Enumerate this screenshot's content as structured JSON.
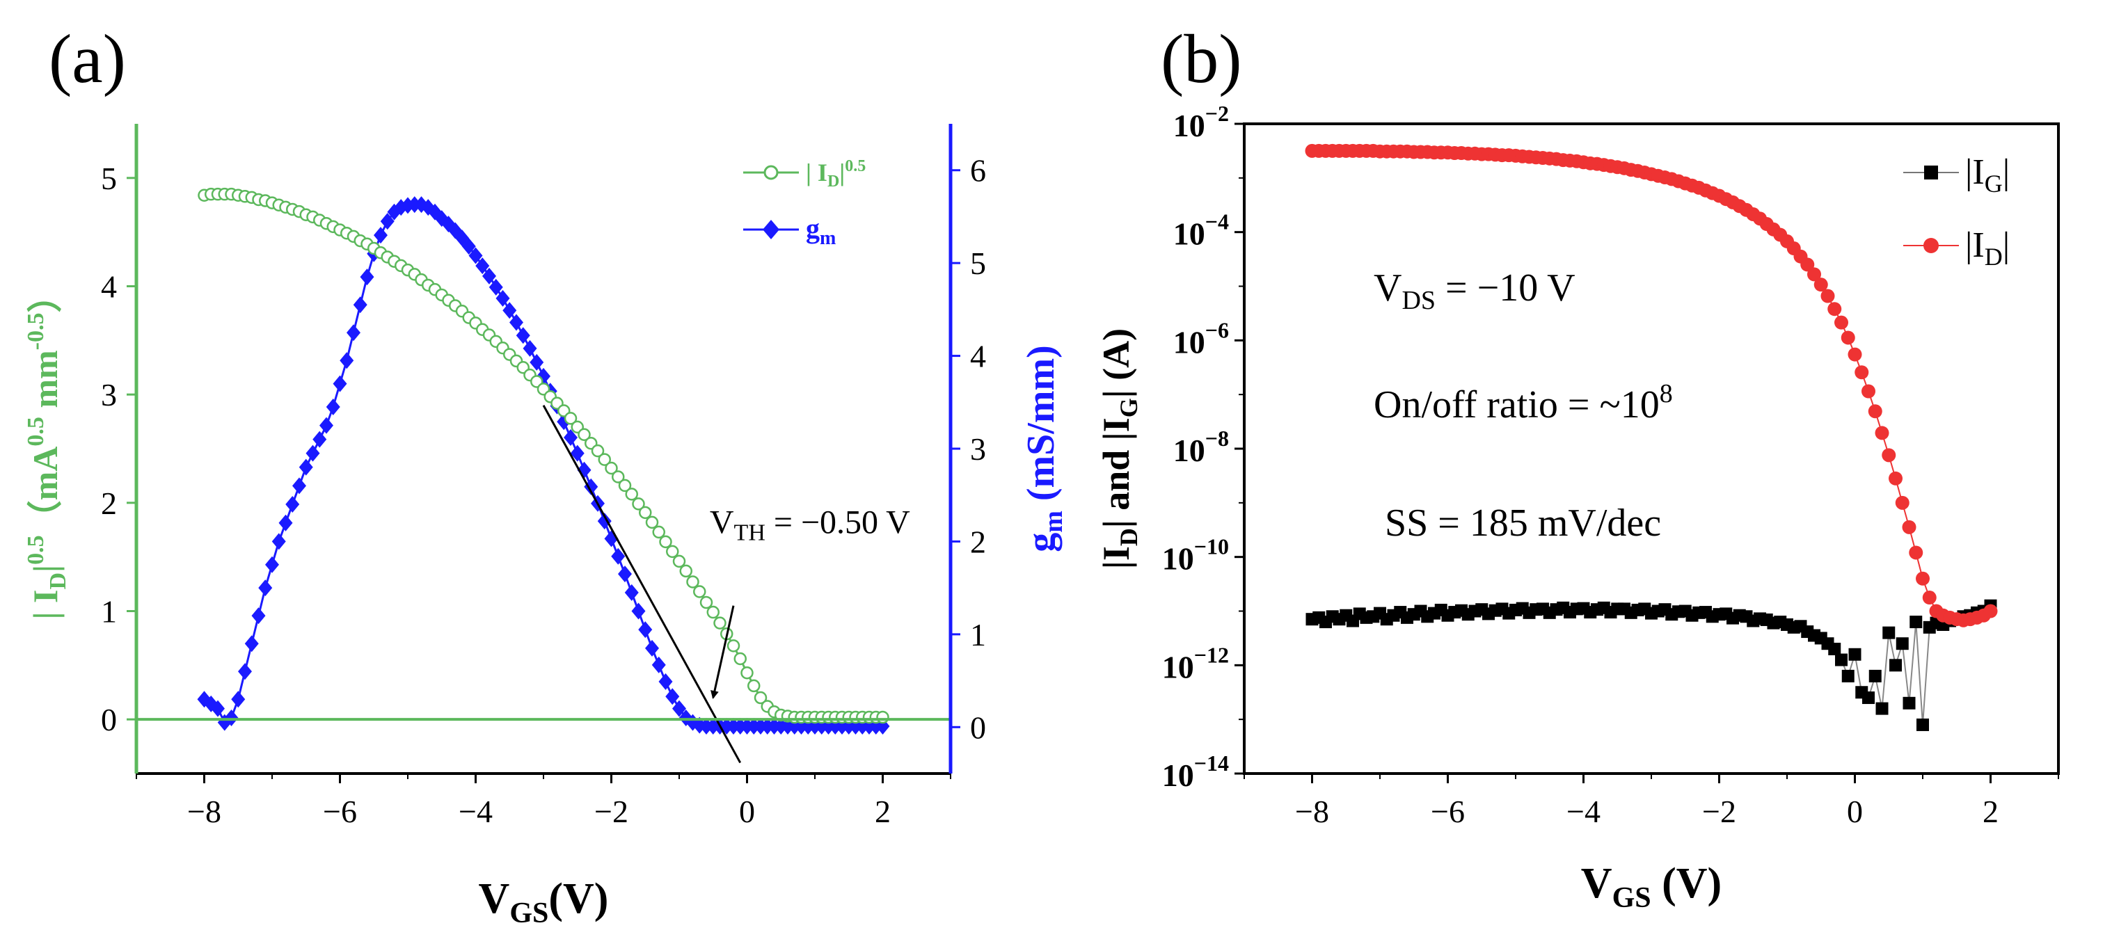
{
  "chart_data": [
    {
      "panel_label": "(a)",
      "type": "line",
      "xlabel": {
        "main": "V",
        "sub": "GS",
        "tail": "(V)"
      },
      "xlim": [
        -9,
        3
      ],
      "x_ticks": [
        -8,
        -6,
        -4,
        -2,
        0,
        2
      ],
      "y_left": {
        "label": {
          "p1": "| I",
          "s1": "D",
          "p2": "|",
          "sup1": "0.5",
          "p3": "（mA",
          "sup2": "0.5",
          "p4": " mm",
          "sup3": "-0.5",
          "p5": "）"
        },
        "ylim": [
          -0.5,
          5.5
        ],
        "ticks": [
          0,
          1,
          2,
          3,
          4,
          5
        ],
        "color": "#5cb85c"
      },
      "y_right": {
        "label": {
          "p1": "g",
          "s1": "m",
          "p2": " (mS/mm)"
        },
        "ylim": [
          -0.5,
          6.5
        ],
        "ticks": [
          0,
          1,
          2,
          3,
          4,
          5,
          6
        ],
        "color": "#1a1aff"
      },
      "series": [
        {
          "name": "|ID|0.5",
          "legend": {
            "p1": "| I",
            "s1": "D",
            "p2": "|",
            "sup": "0.5"
          },
          "axis": "left",
          "marker": "circle-open",
          "color": "#5cb85c",
          "x_start": -8,
          "x_step": 0.1,
          "values": [
            4.84,
            4.85,
            4.85,
            4.85,
            4.85,
            4.84,
            4.83,
            4.82,
            4.8,
            4.79,
            4.77,
            4.75,
            4.73,
            4.71,
            4.69,
            4.66,
            4.64,
            4.61,
            4.58,
            4.55,
            4.52,
            4.49,
            4.46,
            4.42,
            4.39,
            4.35,
            4.31,
            4.27,
            4.23,
            4.19,
            4.15,
            4.11,
            4.06,
            4.01,
            3.97,
            3.92,
            3.87,
            3.82,
            3.77,
            3.71,
            3.66,
            3.6,
            3.55,
            3.49,
            3.43,
            3.37,
            3.31,
            3.25,
            3.18,
            3.12,
            3.05,
            2.98,
            2.92,
            2.85,
            2.78,
            2.7,
            2.63,
            2.55,
            2.48,
            2.4,
            2.32,
            2.24,
            2.16,
            2.08,
            1.99,
            1.91,
            1.82,
            1.73,
            1.64,
            1.55,
            1.46,
            1.37,
            1.27,
            1.18,
            1.08,
            0.99,
            0.89,
            0.79,
            0.68,
            0.56,
            0.43,
            0.31,
            0.2,
            0.12,
            0.07,
            0.04,
            0.03,
            0.02,
            0.02,
            0.02,
            0.02,
            0.02,
            0.02,
            0.02,
            0.02,
            0.02,
            0.02,
            0.02,
            0.02,
            0.02,
            0.02
          ]
        },
        {
          "name": "gm",
          "legend": {
            "p1": "g",
            "s1": "m"
          },
          "axis": "right",
          "marker": "diamond",
          "color": "#1a1aff",
          "x_start": -8,
          "x_step": 0.1,
          "values": [
            0.3,
            0.25,
            0.2,
            0.05,
            0.1,
            0.3,
            0.6,
            0.9,
            1.2,
            1.5,
            1.75,
            2.0,
            2.2,
            2.4,
            2.6,
            2.8,
            2.95,
            3.1,
            3.25,
            3.45,
            3.7,
            3.95,
            4.25,
            4.55,
            4.85,
            5.1,
            5.3,
            5.45,
            5.55,
            5.6,
            5.62,
            5.63,
            5.63,
            5.6,
            5.55,
            5.48,
            5.42,
            5.35,
            5.27,
            5.18,
            5.08,
            4.97,
            4.86,
            4.74,
            4.62,
            4.49,
            4.36,
            4.22,
            4.08,
            3.93,
            3.78,
            3.62,
            3.46,
            3.29,
            3.12,
            2.95,
            2.77,
            2.59,
            2.41,
            2.22,
            2.03,
            1.84,
            1.65,
            1.45,
            1.25,
            1.05,
            0.85,
            0.67,
            0.49,
            0.33,
            0.2,
            0.1,
            0.05,
            0.02,
            0.01,
            0.01,
            0.01,
            0.01,
            0.01,
            0.01,
            0.01,
            0.01,
            0.01,
            0.01,
            0.01,
            0.01,
            0.01,
            0.01,
            0.01,
            0.01,
            0.01,
            0.01,
            0.01,
            0.01,
            0.01,
            0.01,
            0.01,
            0.01,
            0.01,
            0.01,
            0.01
          ]
        }
      ],
      "tangent_line": {
        "x": [
          -3.0,
          -0.1
        ],
        "y": [
          2.9,
          -0.4
        ]
      },
      "baseline_y": 0,
      "annotation": {
        "p1": "V",
        "sub": "TH",
        "p2": " = −0.50 V",
        "arrow_from": [
          -0.2,
          1.05
        ],
        "arrow_to": [
          -0.5,
          0.2
        ],
        "text_at": [
          -0.55,
          1.72
        ]
      }
    },
    {
      "panel_label": "(b)",
      "type": "scatter",
      "xlabel": {
        "main": "V",
        "sub": "GS",
        "tail": " (V)"
      },
      "xlim": [
        -9,
        3
      ],
      "x_ticks": [
        -8,
        -6,
        -4,
        -2,
        0,
        2
      ],
      "ylabel": {
        "p1": "|I",
        "s1": "D",
        "p2": "| and |I",
        "s2": "G",
        "p3": "| (A)"
      },
      "ylim_log10": [
        -14,
        -2
      ],
      "y_ticks_exp": [
        -2,
        -4,
        -6,
        -8,
        -10,
        -12,
        -14
      ],
      "y_tick_base": "10",
      "series": [
        {
          "name": "|IG|",
          "legend": {
            "p1": "|I",
            "s1": "G",
            "p2": "|"
          },
          "marker": "square",
          "color": "#000000",
          "x_start": -8,
          "x_step": 0.1,
          "log10_values": [
            -11.15,
            -11.12,
            -11.2,
            -11.1,
            -11.15,
            -11.08,
            -11.18,
            -11.05,
            -11.12,
            -11.1,
            -11.04,
            -11.15,
            -11.08,
            -11.02,
            -11.12,
            -11.06,
            -11.0,
            -11.1,
            -11.04,
            -10.98,
            -11.08,
            -11.02,
            -10.99,
            -11.06,
            -11.0,
            -10.97,
            -11.05,
            -10.99,
            -10.96,
            -11.04,
            -10.98,
            -10.95,
            -11.03,
            -10.97,
            -10.96,
            -11.03,
            -10.97,
            -10.94,
            -11.02,
            -10.96,
            -10.95,
            -11.02,
            -10.97,
            -10.94,
            -11.02,
            -10.96,
            -10.96,
            -11.03,
            -10.98,
            -10.96,
            -11.04,
            -11.0,
            -10.97,
            -11.06,
            -11.01,
            -11.0,
            -11.08,
            -11.03,
            -11.02,
            -11.1,
            -11.06,
            -11.05,
            -11.13,
            -11.08,
            -11.1,
            -11.18,
            -11.14,
            -11.16,
            -11.22,
            -11.2,
            -11.25,
            -11.3,
            -11.28,
            -11.38,
            -11.45,
            -11.5,
            -11.6,
            -11.7,
            -11.9,
            -12.2,
            -11.8,
            -12.5,
            -12.6,
            -12.2,
            -12.8,
            -11.4,
            -12.0,
            -11.6,
            -12.7,
            -11.2,
            -13.1,
            -11.3,
            -11.22,
            -11.25,
            -11.18,
            -11.15,
            -11.1,
            -11.08,
            -11.03,
            -11.0,
            -10.9
          ]
        },
        {
          "name": "|ID|",
          "legend": {
            "p1": "|I",
            "s1": "D",
            "p2": "|"
          },
          "marker": "circle",
          "color": "#ee3333",
          "x_start": -8,
          "x_step": 0.1,
          "log10_values": [
            -2.5,
            -2.5,
            -2.5,
            -2.5,
            -2.5,
            -2.5,
            -2.5,
            -2.5,
            -2.5,
            -2.5,
            -2.51,
            -2.51,
            -2.51,
            -2.51,
            -2.51,
            -2.52,
            -2.52,
            -2.52,
            -2.53,
            -2.53,
            -2.53,
            -2.54,
            -2.54,
            -2.55,
            -2.55,
            -2.56,
            -2.56,
            -2.57,
            -2.58,
            -2.58,
            -2.59,
            -2.6,
            -2.61,
            -2.62,
            -2.63,
            -2.64,
            -2.65,
            -2.67,
            -2.68,
            -2.69,
            -2.71,
            -2.73,
            -2.74,
            -2.76,
            -2.78,
            -2.8,
            -2.82,
            -2.85,
            -2.87,
            -2.9,
            -2.93,
            -2.96,
            -2.99,
            -3.02,
            -3.06,
            -3.1,
            -3.14,
            -3.18,
            -3.23,
            -3.28,
            -3.33,
            -3.39,
            -3.45,
            -3.52,
            -3.59,
            -3.67,
            -3.75,
            -3.85,
            -3.95,
            -4.05,
            -4.17,
            -4.3,
            -4.45,
            -4.6,
            -4.78,
            -4.97,
            -5.18,
            -5.42,
            -5.67,
            -5.95,
            -6.26,
            -6.59,
            -6.94,
            -7.31,
            -7.71,
            -8.12,
            -8.55,
            -9.0,
            -9.45,
            -9.92,
            -10.4,
            -10.75,
            -11.0,
            -11.08,
            -11.12,
            -11.15,
            -11.17,
            -11.15,
            -11.12,
            -11.08,
            -11.0
          ]
        }
      ],
      "annotations": [
        {
          "p1": "V",
          "sub": "DS",
          "p2": " = −10 V"
        },
        {
          "p1": "On/off ratio = ~10",
          "sup": "8"
        },
        {
          "p1": "SS = 185 mV/dec"
        }
      ]
    }
  ]
}
